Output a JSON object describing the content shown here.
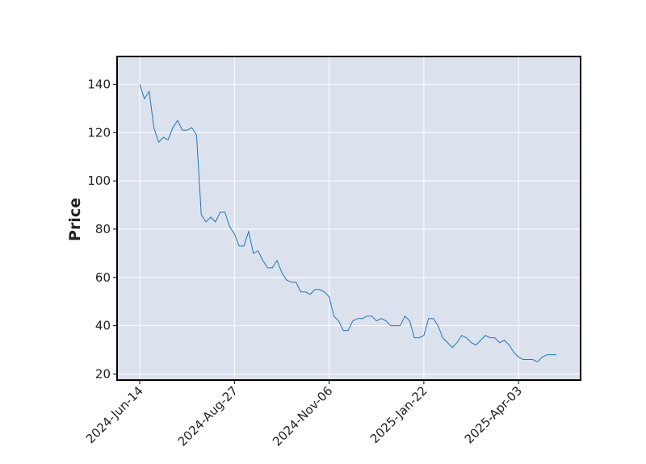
{
  "chart_data": {
    "type": "line",
    "ylabel": "Price",
    "categories": [
      "2024-Jun-14",
      null,
      null,
      null,
      null,
      null,
      null,
      null,
      null,
      null,
      null,
      null,
      null,
      null,
      null,
      null,
      null,
      null,
      null,
      null,
      "2024-Aug-27",
      null,
      null,
      null,
      null,
      null,
      null,
      null,
      null,
      null,
      null,
      null,
      null,
      null,
      null,
      null,
      null,
      null,
      null,
      null,
      "2024-Nov-06",
      null,
      null,
      null,
      null,
      null,
      null,
      null,
      null,
      null,
      null,
      null,
      null,
      null,
      null,
      null,
      null,
      null,
      null,
      null,
      "2025-Jan-22",
      null,
      null,
      null,
      null,
      null,
      null,
      null,
      null,
      null,
      null,
      null,
      null,
      null,
      null,
      null,
      null,
      null,
      null,
      null,
      "2025-Apr-03",
      null,
      null,
      null,
      null,
      null,
      null,
      null,
      null
    ],
    "series": [
      {
        "color": "#1f77b4",
        "values": [
          140,
          134,
          137,
          122,
          116,
          118,
          117,
          122,
          125,
          121,
          121,
          122,
          119,
          86,
          83,
          85,
          83,
          87,
          87,
          81,
          78,
          73,
          73,
          79,
          70,
          71,
          67,
          64,
          64,
          67,
          62,
          59,
          58,
          58,
          54,
          54,
          53,
          55,
          55,
          54,
          52,
          44,
          42,
          38,
          38,
          42,
          43,
          43,
          44,
          44,
          42,
          43,
          42,
          40,
          40,
          40,
          44,
          42,
          35,
          35,
          36,
          43,
          43,
          40,
          35,
          33,
          31,
          33,
          36,
          35,
          33,
          32,
          34,
          36,
          35,
          35,
          33,
          34,
          32,
          29,
          27,
          26,
          26,
          26,
          25,
          27,
          28,
          28,
          28
        ]
      }
    ],
    "ylim": [
      17.5,
      151.5
    ],
    "yticks": [
      20,
      40,
      60,
      80,
      100,
      120,
      140
    ],
    "grid": true
  }
}
